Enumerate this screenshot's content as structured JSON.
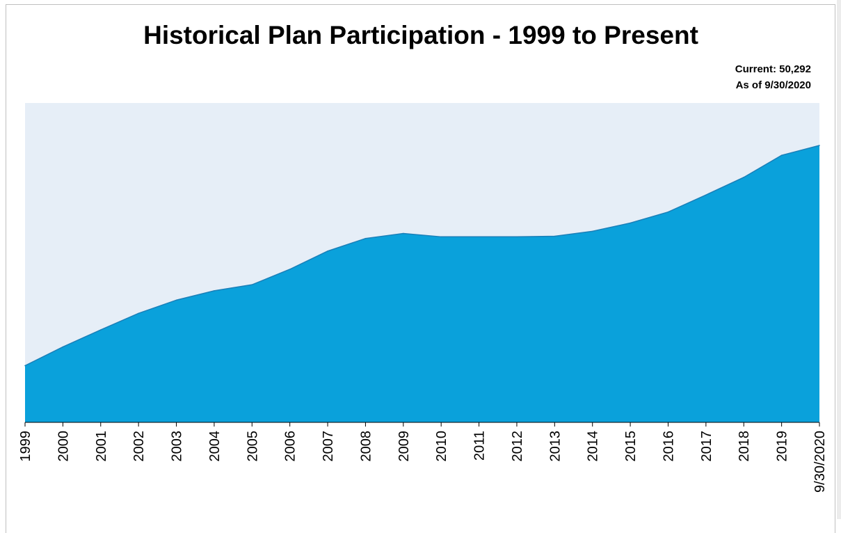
{
  "chart_data": {
    "type": "area",
    "title": "Historical Plan Participation - 1999 to Present",
    "annotation_current": "Current: 50,292",
    "annotation_asof": "As of 9/30/2020",
    "categories": [
      "1999",
      "2000",
      "2001",
      "2002",
      "2003",
      "2004",
      "2005",
      "2006",
      "2007",
      "2008",
      "2009",
      "2010",
      "2011",
      "2012",
      "2013",
      "2014",
      "2015",
      "2016",
      "2017",
      "2018",
      "2019",
      "9/30/2020"
    ],
    "values": [
      10300,
      13700,
      16800,
      19800,
      22200,
      23900,
      25000,
      27800,
      31100,
      33400,
      34300,
      33700,
      33700,
      33700,
      33800,
      34700,
      36200,
      38200,
      41300,
      44500,
      48500,
      50292
    ],
    "ylim": [
      0,
      58000
    ],
    "grid": false,
    "legend": "none",
    "colors": {
      "fill": "#0aa1db",
      "line": "#1a7fb8",
      "plot_bg": "#e6eef7"
    }
  }
}
